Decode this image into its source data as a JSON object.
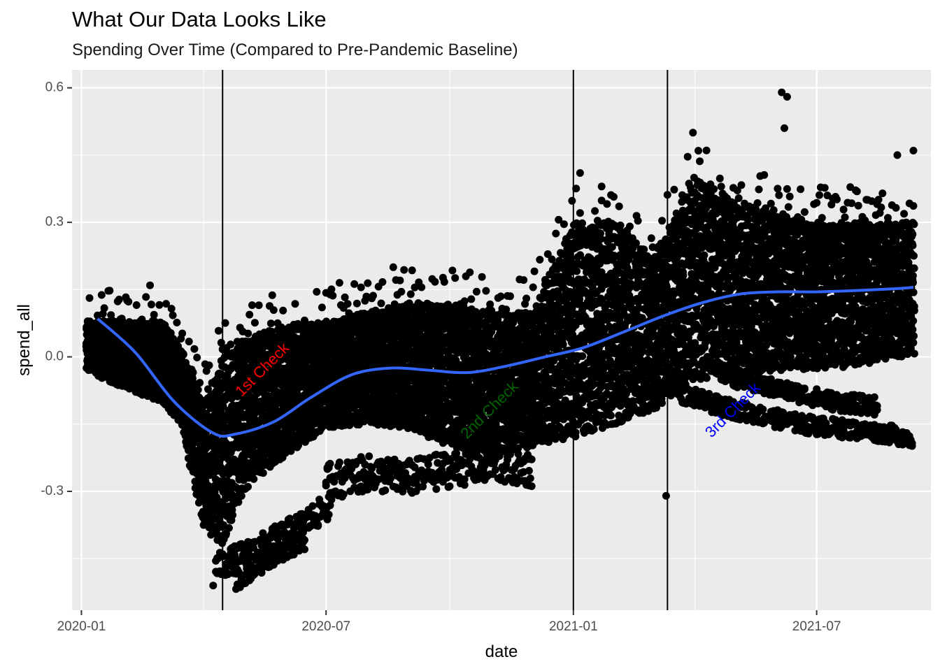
{
  "chart_data": {
    "type": "scatter",
    "title": "What Our Data Looks Like",
    "subtitle": "Spending Over Time (Compared to Pre-Pandemic Baseline)",
    "xlabel": "date",
    "ylabel": "spend_all",
    "x_ticks": [
      "2020-01",
      "2020-07",
      "2021-01",
      "2021-07"
    ],
    "y_ticks": [
      -0.3,
      0.0,
      0.3,
      0.6
    ],
    "y_tick_labels": [
      "-0.3",
      "0.0",
      "0.3",
      "0.6"
    ],
    "xlim": [
      "2019-12-25",
      "2021-09-24"
    ],
    "ylim": [
      -0.565,
      0.64
    ],
    "grid": true,
    "background": "#ebebeb",
    "point_color": "#000000",
    "smooth_color": "#3366ff",
    "vlines": [
      {
        "date": "2020-04-15",
        "label": "1st Check",
        "color": "#ff0000",
        "label_date": "2020-05-15",
        "label_y": -0.03
      },
      {
        "date": "2021-01-01",
        "label": "2nd Check",
        "color": "#006400",
        "label_date": "2020-10-31",
        "label_y": -0.12
      },
      {
        "date": "2021-03-12",
        "label": "3rd Check",
        "color": "#0000ff",
        "label_date": "2021-04-30",
        "label_y": -0.12
      }
    ],
    "smooth": {
      "x": [
        "2020-01-13",
        "2020-02-10",
        "2020-03-10",
        "2020-04-08",
        "2020-04-25",
        "2020-05-23",
        "2020-06-20",
        "2020-07-20",
        "2020-08-18",
        "2020-09-16",
        "2020-10-15",
        "2020-11-13",
        "2020-12-11",
        "2021-01-08",
        "2021-02-07",
        "2021-03-08",
        "2021-04-06",
        "2021-05-05",
        "2021-06-02",
        "2021-07-02",
        "2021-07-31",
        "2021-08-29",
        "2021-09-11"
      ],
      "y": [
        0.085,
        0.01,
        -0.1,
        -0.17,
        -0.172,
        -0.145,
        -0.09,
        -0.04,
        -0.025,
        -0.03,
        -0.035,
        -0.02,
        0.0,
        0.02,
        0.055,
        0.09,
        0.12,
        0.14,
        0.145,
        0.145,
        0.148,
        0.152,
        0.155
      ]
    },
    "bands": {
      "x": [
        "2020-01-05",
        "2020-02-01",
        "2020-03-01",
        "2020-03-15",
        "2020-04-01",
        "2020-04-15",
        "2020-05-01",
        "2020-06-01",
        "2020-07-01",
        "2020-08-01",
        "2020-09-01",
        "2020-10-01",
        "2020-11-01",
        "2020-12-01",
        "2021-01-01",
        "2021-02-01",
        "2021-03-01",
        "2021-04-01",
        "2021-05-01",
        "2021-06-01",
        "2021-07-01",
        "2021-08-01",
        "2021-09-11"
      ],
      "upper": [
        0.08,
        0.08,
        0.08,
        0.02,
        -0.1,
        0.0,
        0.04,
        0.07,
        0.08,
        0.1,
        0.12,
        0.12,
        0.1,
        0.1,
        0.3,
        0.3,
        0.22,
        0.4,
        0.35,
        0.32,
        0.3,
        0.3,
        0.3
      ],
      "lower": [
        -0.03,
        -0.07,
        -0.1,
        -0.15,
        -0.38,
        -0.42,
        -0.3,
        -0.22,
        -0.16,
        -0.15,
        -0.16,
        -0.2,
        -0.22,
        -0.2,
        -0.18,
        -0.15,
        -0.12,
        -0.05,
        -0.05,
        -0.03,
        -0.03,
        -0.02,
        0.0
      ]
    },
    "outlier_groups": [
      {
        "x": [
          "2020-04-10",
          "2020-05-10",
          "2020-06-10",
          "2020-07-05"
        ],
        "y": [
          -0.47,
          -0.43,
          -0.38,
          -0.33
        ],
        "spread": 0.03
      },
      {
        "x": [
          "2020-04-25",
          "2020-05-25",
          "2020-06-15"
        ],
        "y": [
          -0.5,
          -0.44,
          -0.41
        ],
        "spread": 0.02
      },
      {
        "x": [
          "2020-07-01",
          "2020-08-01",
          "2020-09-01",
          "2020-10-01",
          "2020-11-01",
          "2020-12-01"
        ],
        "y": [
          -0.28,
          -0.26,
          -0.27,
          -0.25,
          -0.24,
          -0.25
        ],
        "spread": 0.04
      },
      {
        "x": [
          "2021-03-20",
          "2021-04-20",
          "2021-05-20",
          "2021-06-20",
          "2021-07-20",
          "2021-08-20",
          "2021-09-10"
        ],
        "y": [
          -0.08,
          -0.11,
          -0.13,
          -0.15,
          -0.16,
          -0.17,
          -0.18
        ],
        "spread": 0.02
      },
      {
        "x": [
          "2021-04-15",
          "2021-05-15",
          "2021-06-15",
          "2021-07-15",
          "2021-08-15"
        ],
        "y": [
          -0.03,
          -0.06,
          -0.08,
          -0.1,
          -0.11
        ],
        "spread": 0.02
      }
    ],
    "peak_points": {
      "x": [
        "2020-08-20",
        "2021-01-06",
        "2021-01-22",
        "2021-03-31",
        "2021-06-05",
        "2021-06-09",
        "2021-06-07",
        "2021-08-30",
        "2021-09-11",
        "2021-03-11",
        "2020-04-08"
      ],
      "y": [
        0.2,
        0.41,
        0.38,
        0.5,
        0.59,
        0.58,
        0.51,
        0.45,
        0.46,
        -0.31,
        -0.51
      ]
    }
  }
}
